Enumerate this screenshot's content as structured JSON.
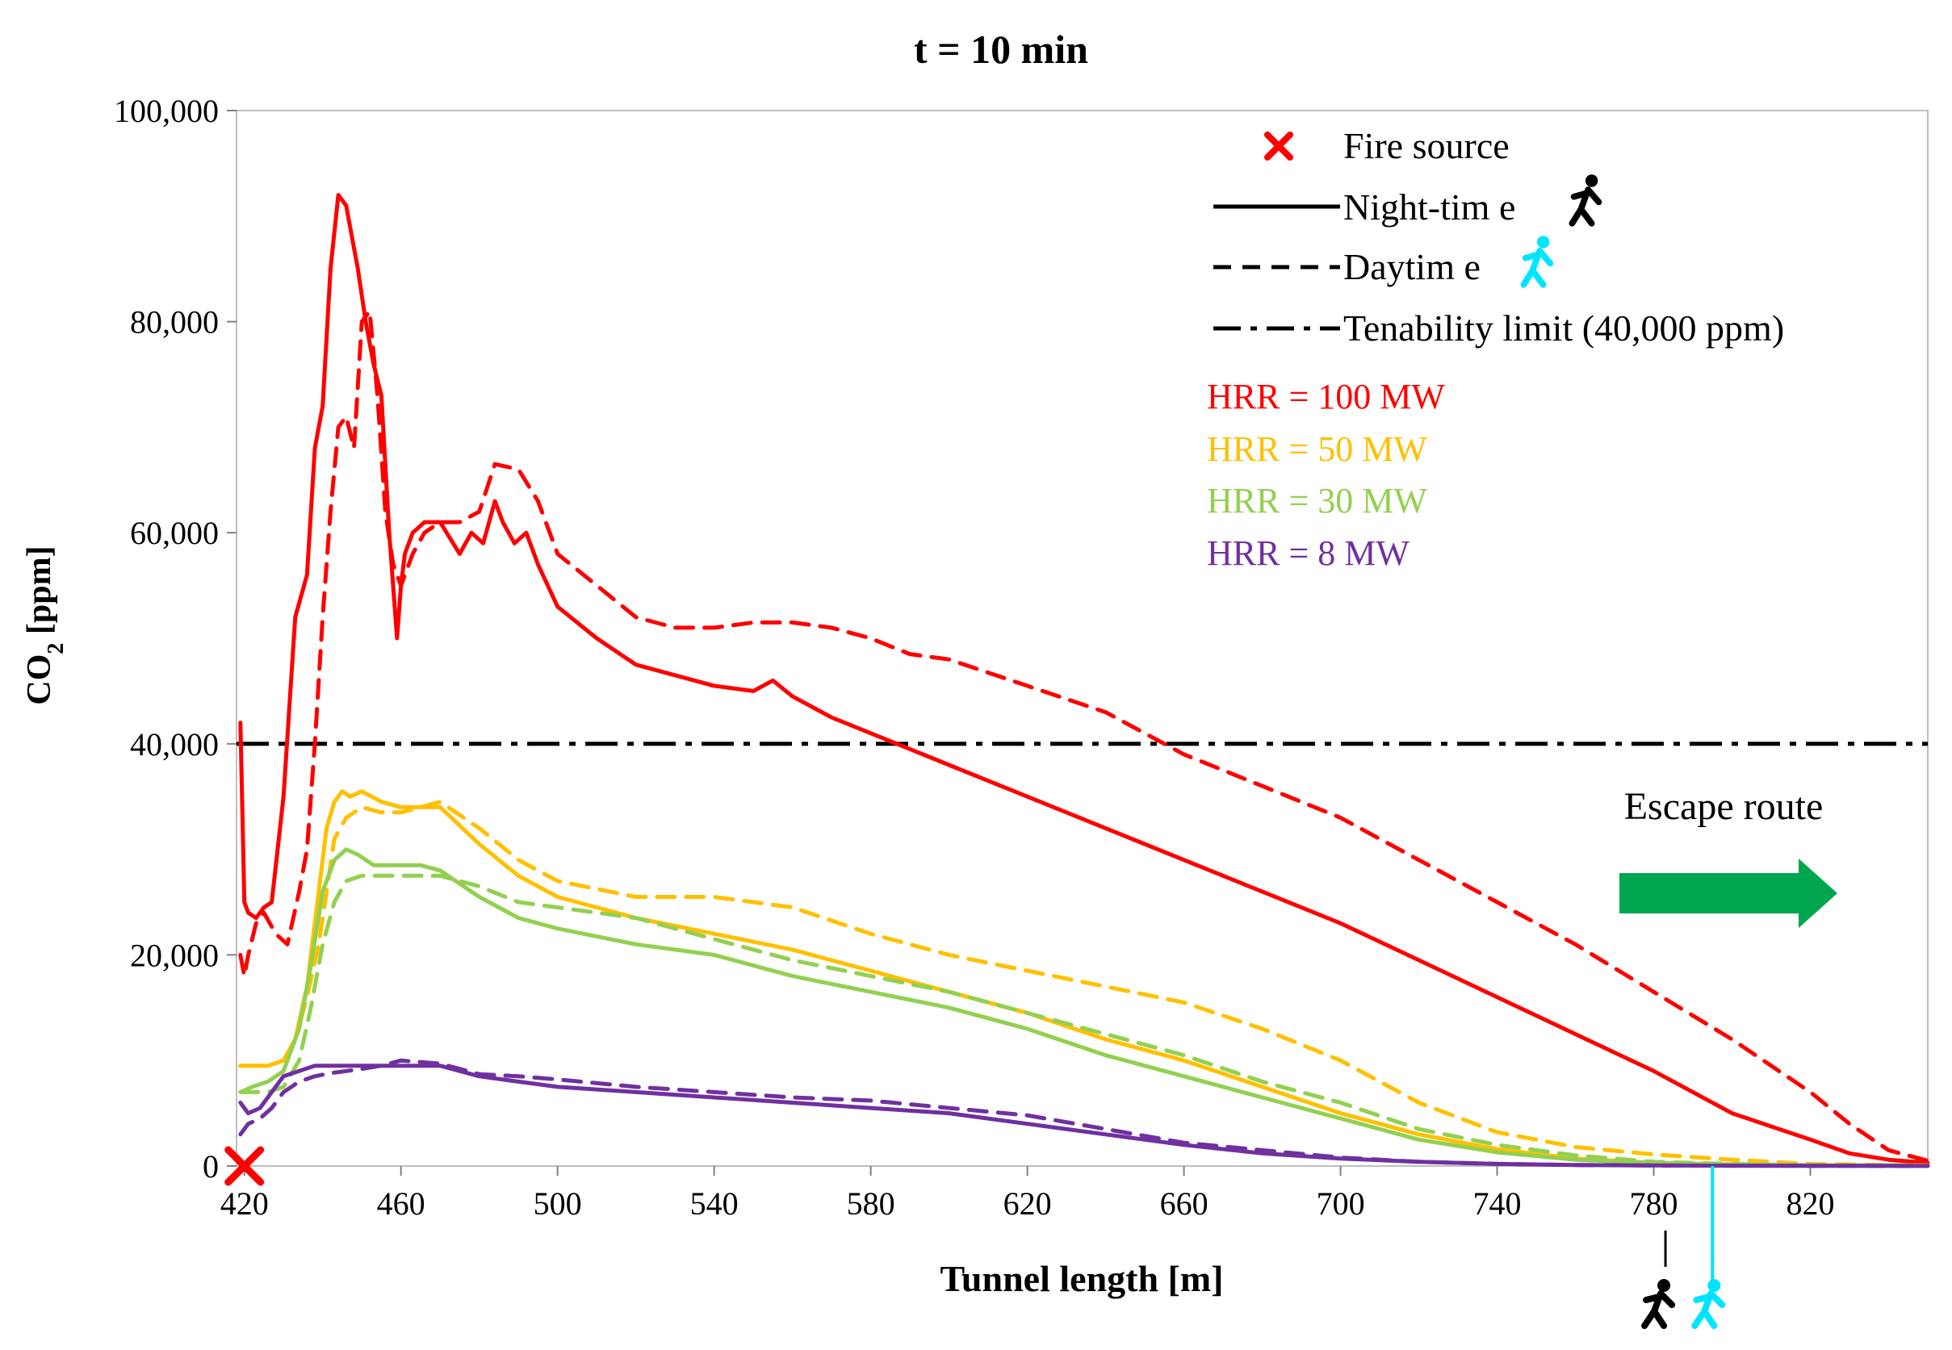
{
  "colors": {
    "hrr100": "#ff0000",
    "hrr50": "#ffc000",
    "hrr30": "#92d050",
    "hrr8": "#7030a0",
    "limit": "#000000",
    "arrow": "#00a550",
    "daytime_icon": "#00e5ff",
    "night_icon": "#000000",
    "fire": "#ff0000"
  },
  "chart_data": {
    "type": "line",
    "title": "t = 10 min",
    "xlabel": "Tunnel length [m]",
    "ylabel_main": "CO",
    "ylabel_sub": "2",
    "ylabel_unit": " [ppm]",
    "xlim": [
      418,
      850
    ],
    "ylim": [
      0,
      100000
    ],
    "xticks": [
      420,
      460,
      500,
      540,
      580,
      620,
      660,
      700,
      740,
      780,
      820
    ],
    "yticks": [
      0,
      20000,
      40000,
      60000,
      80000,
      100000
    ],
    "ytick_labels": [
      "0",
      "20,000",
      "40,000",
      "60,000",
      "80,000",
      "100,000"
    ],
    "legend": {
      "fire": "Fire source",
      "night": "Night-tim e",
      "day": "Daytim e",
      "limit": "Tenability limit (40,000 ppm)",
      "hrr100": "HRR = 100 MW",
      "hrr50": "HRR = 50 MW",
      "hrr30": "HRR = 30 MW",
      "hrr8": "HRR = 8 MW"
    },
    "annotation": "Escape route",
    "fire_source_x": 420,
    "night_escape_x": 783,
    "day_escape_x": 795,
    "tenability_limit": 40000,
    "series": [
      {
        "hrr": "100",
        "style": "night",
        "color_key": "hrr100",
        "x": [
          419,
          420,
          421,
          423,
          425,
          427,
          430,
          433,
          436,
          438,
          440,
          442,
          444,
          446,
          447,
          449,
          451,
          453,
          455,
          457,
          459,
          460,
          461,
          463,
          466,
          470,
          475,
          478,
          481,
          484,
          486,
          489,
          492,
          495,
          500,
          505,
          510,
          520,
          530,
          540,
          550,
          555,
          560,
          570,
          580,
          590,
          600,
          620,
          640,
          660,
          680,
          700,
          720,
          740,
          760,
          780,
          800,
          820,
          830,
          840,
          850
        ],
        "y": [
          42000,
          25000,
          24000,
          23500,
          24500,
          25000,
          35000,
          52000,
          56000,
          68000,
          72000,
          85000,
          92000,
          91000,
          89000,
          85000,
          80000,
          76000,
          73000,
          60000,
          50000,
          55000,
          58000,
          60000,
          61000,
          61000,
          58000,
          60000,
          59000,
          63000,
          61000,
          59000,
          60000,
          57000,
          53000,
          51500,
          50000,
          47500,
          46500,
          45500,
          45000,
          46000,
          44500,
          42500,
          41000,
          39500,
          38000,
          35000,
          32000,
          29000,
          26000,
          23000,
          19500,
          16000,
          12500,
          9000,
          5000,
          2500,
          1200,
          600,
          300
        ]
      },
      {
        "hrr": "100",
        "style": "day",
        "color_key": "hrr100",
        "x": [
          419,
          420,
          421,
          423,
          425,
          428,
          431,
          434,
          436,
          438,
          440,
          442,
          444,
          446,
          448,
          450,
          452,
          454,
          456,
          458,
          460,
          463,
          466,
          470,
          475,
          480,
          484,
          490,
          495,
          500,
          510,
          520,
          530,
          540,
          550,
          560,
          570,
          580,
          590,
          600,
          620,
          640,
          660,
          680,
          700,
          720,
          740,
          760,
          780,
          800,
          820,
          830,
          840,
          850
        ],
        "y": [
          20000,
          18000,
          20000,
          23000,
          24000,
          22000,
          21000,
          26000,
          30000,
          40000,
          52000,
          62000,
          70000,
          71000,
          68000,
          80000,
          81000,
          73000,
          62000,
          57000,
          55000,
          58000,
          60000,
          61000,
          61000,
          62000,
          66500,
          66000,
          63000,
          58000,
          55000,
          52000,
          51000,
          51000,
          51500,
          51500,
          51000,
          50000,
          48500,
          48000,
          45500,
          43000,
          39000,
          36000,
          33000,
          29000,
          25000,
          21000,
          16500,
          12000,
          7000,
          4000,
          1500,
          500
        ]
      },
      {
        "hrr": "50",
        "style": "night",
        "color_key": "hrr50",
        "x": [
          419,
          422,
          426,
          430,
          433,
          436,
          439,
          441,
          443,
          445,
          447,
          450,
          455,
          460,
          470,
          480,
          490,
          500,
          520,
          540,
          560,
          580,
          600,
          620,
          640,
          660,
          680,
          700,
          720,
          740,
          760,
          780,
          800,
          820,
          850
        ],
        "y": [
          9500,
          9500,
          9500,
          10000,
          12000,
          17000,
          26000,
          32000,
          34500,
          35500,
          35000,
          35500,
          34500,
          34000,
          34000,
          30500,
          27500,
          25500,
          23500,
          22000,
          20500,
          18500,
          16500,
          14500,
          12000,
          10000,
          7500,
          5000,
          3000,
          1600,
          700,
          300,
          150,
          80,
          50
        ]
      },
      {
        "hrr": "50",
        "style": "day",
        "color_key": "hrr50",
        "x": [
          419,
          422,
          426,
          430,
          433,
          436,
          439,
          441,
          443,
          446,
          450,
          455,
          460,
          470,
          480,
          490,
          500,
          520,
          540,
          560,
          580,
          600,
          620,
          640,
          660,
          680,
          700,
          720,
          740,
          760,
          780,
          800,
          820,
          850
        ],
        "y": [
          9500,
          9500,
          9500,
          10000,
          12000,
          16000,
          21000,
          26000,
          31000,
          33000,
          34000,
          33500,
          33500,
          34500,
          32000,
          29000,
          27000,
          25500,
          25500,
          24500,
          22000,
          20000,
          18500,
          17000,
          15500,
          13000,
          10000,
          6000,
          3200,
          1800,
          1100,
          600,
          200,
          50
        ]
      },
      {
        "hrr": "30",
        "style": "night",
        "color_key": "hrr30",
        "x": [
          419,
          422,
          426,
          430,
          434,
          437,
          440,
          443,
          446,
          449,
          453,
          458,
          465,
          470,
          480,
          490,
          500,
          520,
          540,
          560,
          580,
          600,
          620,
          640,
          660,
          680,
          700,
          720,
          740,
          760,
          780,
          800,
          820,
          850
        ],
        "y": [
          7000,
          7500,
          8000,
          9000,
          13000,
          19000,
          26000,
          29000,
          30000,
          29500,
          28500,
          28500,
          28500,
          28000,
          25500,
          23500,
          22500,
          21000,
          20000,
          18000,
          16500,
          15000,
          13000,
          10500,
          8500,
          6500,
          4500,
          2500,
          1300,
          600,
          300,
          150,
          80,
          50
        ]
      },
      {
        "hrr": "30",
        "style": "day",
        "color_key": "hrr30",
        "x": [
          419,
          422,
          426,
          430,
          434,
          437,
          440,
          443,
          446,
          450,
          455,
          460,
          470,
          480,
          490,
          500,
          520,
          540,
          560,
          580,
          600,
          620,
          640,
          660,
          680,
          700,
          720,
          740,
          760,
          780,
          800,
          820,
          850
        ],
        "y": [
          7000,
          7000,
          7000,
          7500,
          10000,
          15000,
          21000,
          25000,
          27000,
          27500,
          27500,
          27500,
          27500,
          26500,
          25000,
          24500,
          23500,
          21500,
          19500,
          18000,
          16500,
          14500,
          12500,
          10500,
          8000,
          6000,
          3500,
          2000,
          1000,
          400,
          200,
          80,
          50
        ]
      },
      {
        "hrr": "8",
        "style": "night",
        "color_key": "hrr8",
        "x": [
          419,
          421,
          424,
          427,
          430,
          434,
          438,
          442,
          446,
          450,
          455,
          460,
          470,
          480,
          490,
          500,
          520,
          540,
          560,
          580,
          600,
          620,
          640,
          660,
          680,
          700,
          720,
          740,
          760,
          780,
          800,
          820,
          850
        ],
        "y": [
          6000,
          5000,
          5500,
          7000,
          8500,
          9000,
          9500,
          9500,
          9500,
          9500,
          9500,
          9500,
          9500,
          8500,
          8000,
          7500,
          7000,
          6500,
          6000,
          5500,
          5000,
          4000,
          3000,
          2000,
          1200,
          700,
          400,
          200,
          100,
          50,
          30,
          20,
          10
        ]
      },
      {
        "hrr": "8",
        "style": "day",
        "color_key": "hrr8",
        "x": [
          419,
          421,
          424,
          427,
          430,
          434,
          438,
          442,
          446,
          450,
          455,
          460,
          470,
          480,
          490,
          500,
          520,
          540,
          560,
          580,
          600,
          620,
          640,
          660,
          680,
          700,
          720,
          740,
          760,
          780,
          800,
          820,
          850
        ],
        "y": [
          3000,
          4000,
          4500,
          5500,
          7000,
          8000,
          8500,
          8800,
          9000,
          9200,
          9500,
          10000,
          9700,
          8700,
          8500,
          8200,
          7500,
          7000,
          6500,
          6200,
          5500,
          4800,
          3500,
          2200,
          1500,
          800,
          400,
          200,
          100,
          50,
          30,
          20,
          10
        ]
      }
    ]
  }
}
